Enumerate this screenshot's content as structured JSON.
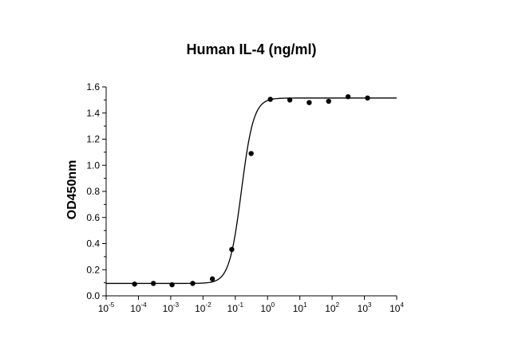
{
  "chart_data": {
    "type": "scatter",
    "title": "Human IL-4 (ng/ml)",
    "xlabel": "",
    "ylabel": "OD450nm",
    "xscale": "log",
    "xlim": [
      1e-05,
      10000
    ],
    "ylim": [
      0.0,
      1.6
    ],
    "grid": false,
    "legend": "none",
    "x_ticks": [
      {
        "base": "10",
        "exp": "-5"
      },
      {
        "base": "10",
        "exp": "-4"
      },
      {
        "base": "10",
        "exp": "-3"
      },
      {
        "base": "10",
        "exp": "-2"
      },
      {
        "base": "10",
        "exp": "-1"
      },
      {
        "base": "10",
        "exp": "0"
      },
      {
        "base": "10",
        "exp": "1"
      },
      {
        "base": "10",
        "exp": "2"
      },
      {
        "base": "10",
        "exp": "3"
      },
      {
        "base": "10",
        "exp": "4"
      }
    ],
    "y_ticks": [
      "0.0",
      "0.2",
      "0.4",
      "0.6",
      "0.8",
      "1.0",
      "1.2",
      "1.4",
      "1.6"
    ],
    "series": [
      {
        "points": [
          {
            "x": 7.6e-05,
            "y": 0.09
          },
          {
            "x": 0.00029,
            "y": 0.095
          },
          {
            "x": 0.0011,
            "y": 0.085
          },
          {
            "x": 0.0048,
            "y": 0.095
          },
          {
            "x": 0.0195,
            "y": 0.13
          },
          {
            "x": 0.078,
            "y": 0.355
          },
          {
            "x": 0.31,
            "y": 1.09
          },
          {
            "x": 1.22,
            "y": 1.505
          },
          {
            "x": 4.9,
            "y": 1.5
          },
          {
            "x": 19.5,
            "y": 1.48
          },
          {
            "x": 78,
            "y": 1.49
          },
          {
            "x": 312,
            "y": 1.525
          },
          {
            "x": 1250,
            "y": 1.515
          }
        ],
        "fit": {
          "model": "4PL",
          "bottom": 0.095,
          "top": 1.515,
          "ec50": 0.155,
          "hill": 2.3
        }
      }
    ],
    "colors": {
      "points": "#000000",
      "line": "#000000",
      "axis": "#000000"
    }
  }
}
